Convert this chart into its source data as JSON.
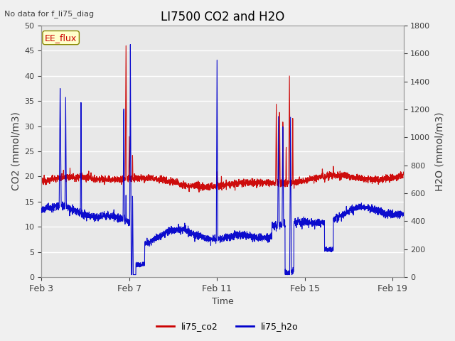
{
  "title": "LI7500 CO2 and H2O",
  "top_left_text": "No data for f_li75_diag",
  "xlabel": "Time",
  "ylabel_left": "CO2 (mmol/m3)",
  "ylabel_right": "H2O (mmol/m3)",
  "ylim_left": [
    0,
    50
  ],
  "ylim_right": [
    0,
    1800
  ],
  "yticks_left": [
    0,
    5,
    10,
    15,
    20,
    25,
    30,
    35,
    40,
    45,
    50
  ],
  "yticks_right": [
    0,
    200,
    400,
    600,
    800,
    1000,
    1200,
    1400,
    1600,
    1800
  ],
  "xtick_labels": [
    "Feb 3",
    "Feb 7",
    "Feb 11",
    "Feb 15",
    "Feb 19"
  ],
  "xtick_positions": [
    3,
    7,
    11,
    15,
    19
  ],
  "xmin": 3,
  "xmax": 19.5,
  "legend_labels": [
    "li75_co2",
    "li75_h2o"
  ],
  "legend_colors": [
    "#cc0000",
    "#0000cc"
  ],
  "color_co2": "#cc0000",
  "color_h2o": "#0000cc",
  "annotation_box_text": "EE_flux",
  "annotation_box_color": "#ffffcc",
  "annotation_box_edgecolor": "#888800",
  "bg_color": "#e8e8e8",
  "grid_color": "#ffffff",
  "title_color": "#000000",
  "axis_label_color": "#404040",
  "fig_bg_color": "#f0f0f0"
}
